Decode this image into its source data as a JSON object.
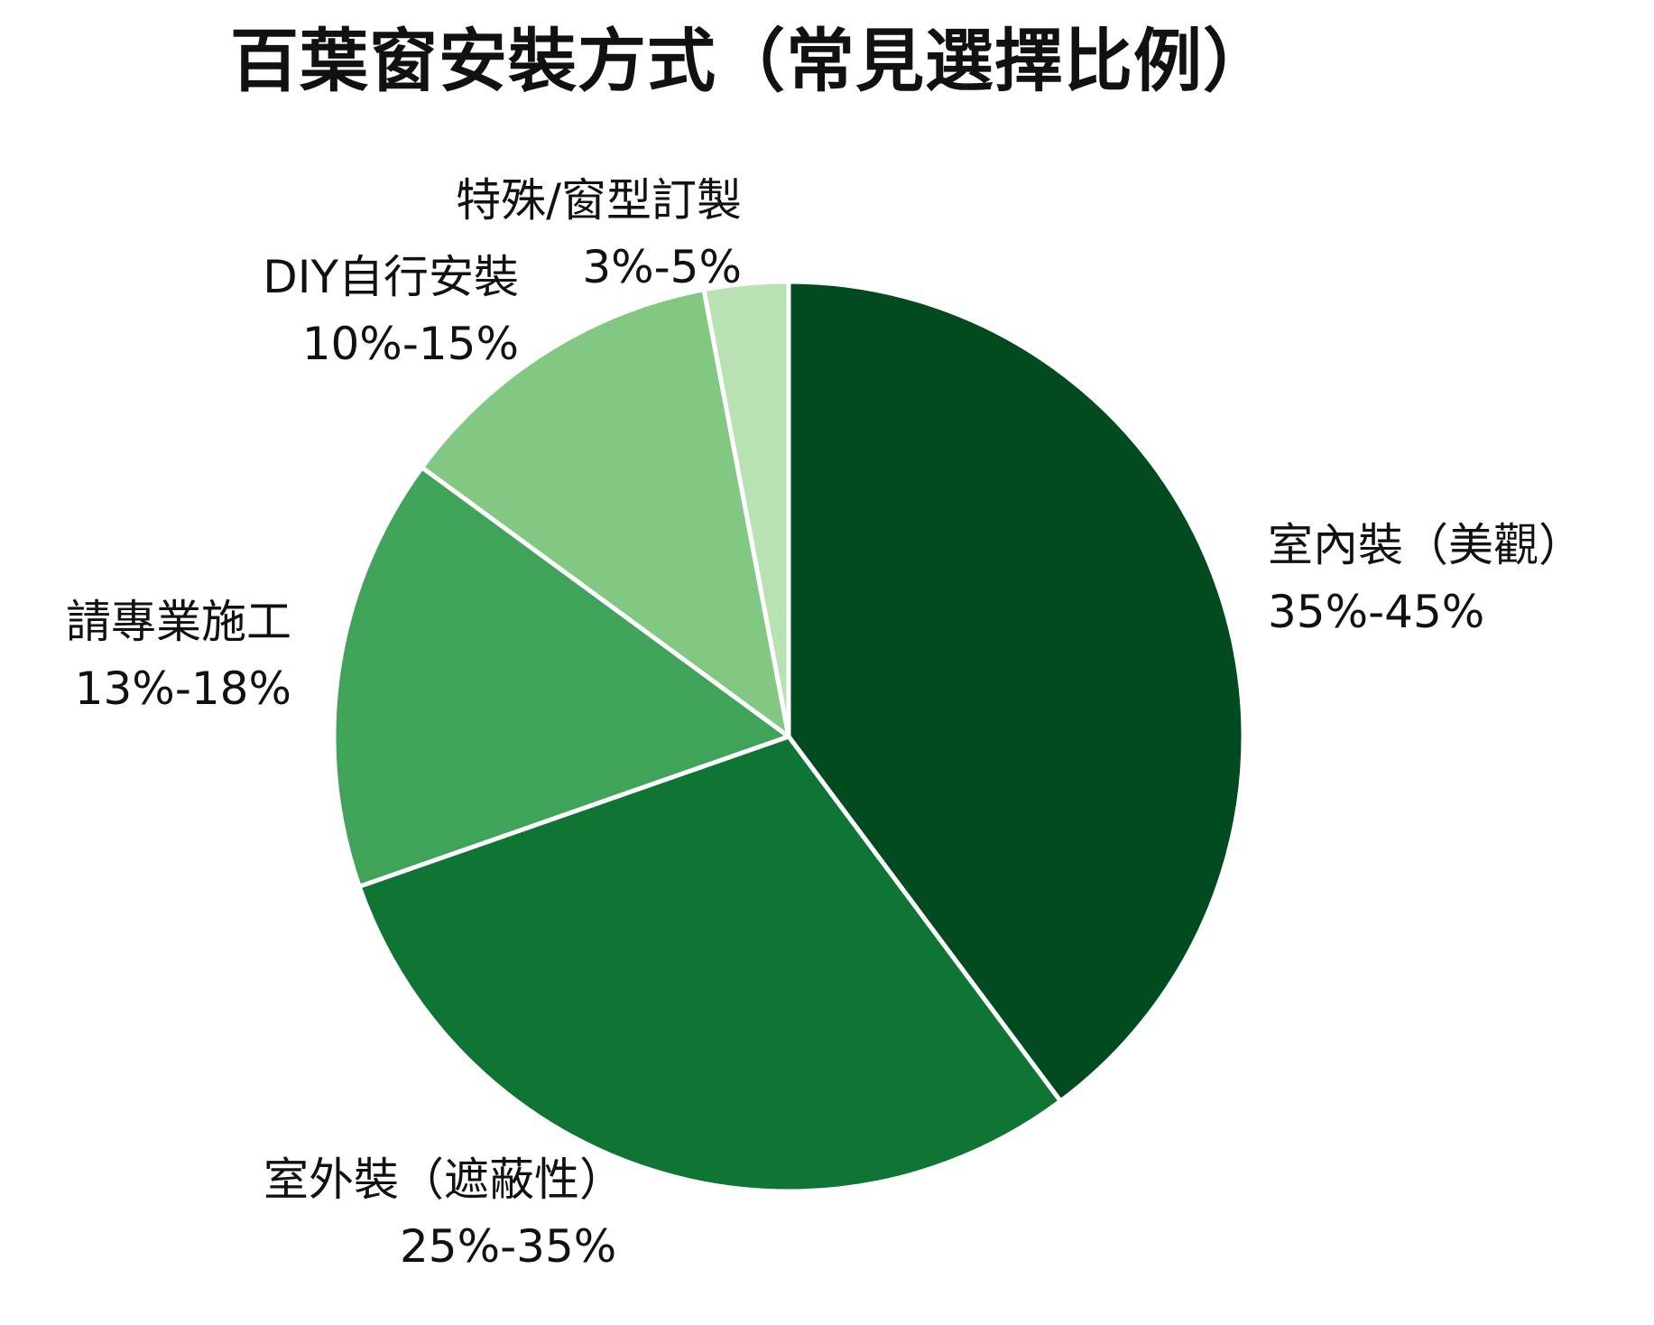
{
  "chart_data": {
    "type": "pie",
    "title": "百葉窗安裝方式（常見選擇比例）",
    "colors": {
      "background": "#ffffff",
      "separator": "#ffffff"
    },
    "slices": [
      {
        "label": "室內裝（美觀）",
        "range": "35%-45%",
        "value": 40,
        "color": "#024a1f"
      },
      {
        "label": "室外裝（遮蔽性）",
        "range": "25%-35%",
        "value": 30,
        "color": "#0f7535"
      },
      {
        "label": "請專業施工",
        "range": "13%-18%",
        "value": 15.5,
        "color": "#3fa45a"
      },
      {
        "label": "DIY自行安裝",
        "range": "10%-15%",
        "value": 12,
        "color": "#83c882"
      },
      {
        "label": "特殊/窗型訂製",
        "range": "3%-5%",
        "value": 3,
        "color": "#b8e2b2"
      }
    ]
  }
}
